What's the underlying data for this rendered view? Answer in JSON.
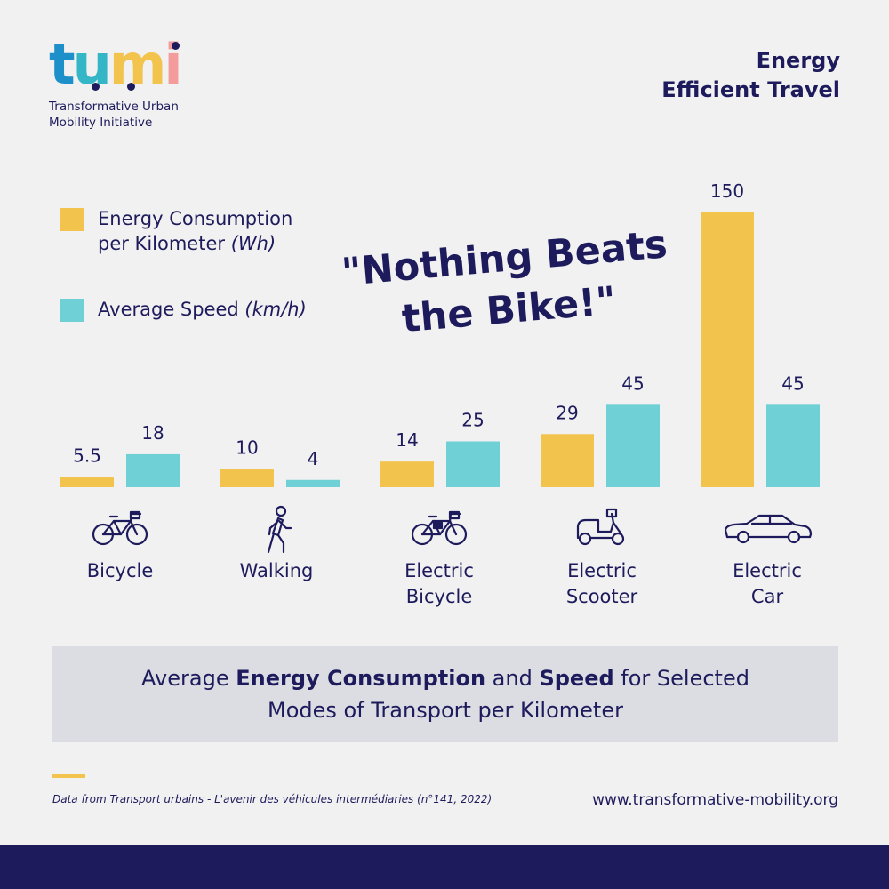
{
  "logo": {
    "letters": [
      "t",
      "u",
      "m",
      "i"
    ],
    "subtitle_line1": "Transformative Urban",
    "subtitle_line2": "Mobility Initiative"
  },
  "header": {
    "title_line1": "Energy",
    "title_line2": "Efficient Travel"
  },
  "slogan": {
    "line1": "\"Nothing Beats",
    "line2": "the Bike!\""
  },
  "chart_data": {
    "type": "bar",
    "title": "Average Energy Consumption and Speed for Selected Modes of Transport per Kilometer",
    "categories": [
      "Bicycle",
      "Walking",
      "Electric Bicycle",
      "Electric Scooter",
      "Electric Car"
    ],
    "series": [
      {
        "name": "Energy Consumption per Kilometer (Wh)",
        "color": "#f2c44e",
        "values": [
          5.5,
          10,
          14,
          29,
          150
        ]
      },
      {
        "name": "Average Speed (km/h)",
        "color": "#6fd0d6",
        "values": [
          18,
          4,
          25,
          45,
          45
        ]
      }
    ],
    "legend": [
      {
        "line1": "Energy Consumption",
        "line2_text": "per Kilometer ",
        "unit": "(Wh)"
      },
      {
        "line1_text": "Average Speed ",
        "unit": "(km/h)"
      }
    ],
    "ylim": [
      0,
      150
    ],
    "grid": false,
    "legend_position": "top-left"
  },
  "categories_display": [
    {
      "line1": "Bicycle",
      "line2": "",
      "icon": "bicycle-icon"
    },
    {
      "line1": "Walking",
      "line2": "",
      "icon": "walking-person-icon"
    },
    {
      "line1": "Electric",
      "line2": "Bicycle",
      "icon": "electric-bicycle-icon"
    },
    {
      "line1": "Electric",
      "line2": "Scooter",
      "icon": "scooter-icon"
    },
    {
      "line1": "Electric",
      "line2": "Car",
      "icon": "car-icon"
    }
  ],
  "caption": {
    "part1": "Average ",
    "bold1": "Energy Consumption",
    "part2": " and ",
    "bold2": "Speed",
    "part3": " for Selected",
    "line2": "Modes of Transport per Kilometer"
  },
  "footer": {
    "source": "Data from Transport urbains - L'avenir des véhicules intermédiaries (n°141, 2022)",
    "website": "www.transformative-mobility.org"
  },
  "colors": {
    "navy": "#1d1b5c",
    "yellow": "#f2c44e",
    "teal": "#6fd0d6",
    "background": "#f1f1f1",
    "caption_bg": "#dcdde2"
  }
}
